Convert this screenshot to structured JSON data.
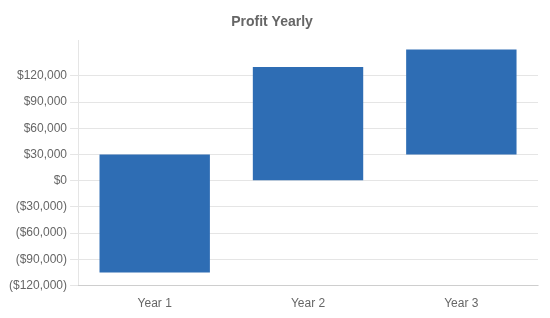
{
  "chart_data": {
    "type": "bar",
    "title": "Profit Yearly",
    "categories": [
      "Year 1",
      "Year 2",
      "Year 3"
    ],
    "values": [
      [
        -105000,
        30000
      ],
      [
        0,
        130000
      ],
      [
        30000,
        150000
      ]
    ],
    "color": "#2E6DB4",
    "ylim": [
      -120000,
      160000
    ],
    "yticks": [
      {
        "value": -120000,
        "label": "($120,000)"
      },
      {
        "value": -90000,
        "label": "($90,000)"
      },
      {
        "value": -60000,
        "label": "($60,000)"
      },
      {
        "value": -30000,
        "label": "($30,000)"
      },
      {
        "value": 0,
        "label": "$0"
      },
      {
        "value": 30000,
        "label": "$30,000"
      },
      {
        "value": 60000,
        "label": "$60,000"
      },
      {
        "value": 90000,
        "label": "$90,000"
      },
      {
        "value": 120000,
        "label": "$120,000"
      }
    ],
    "grid": true
  }
}
